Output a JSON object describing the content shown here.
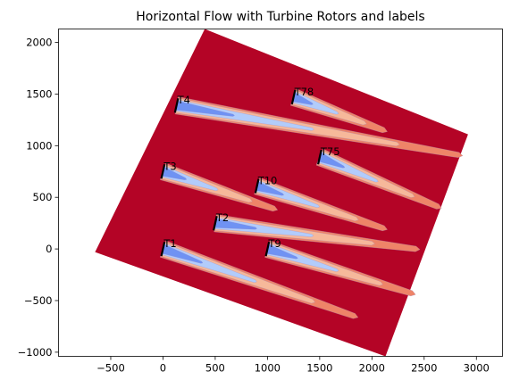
{
  "chart_data": {
    "type": "contour",
    "title": "Horizontal Flow with Turbine Rotors and labels",
    "xlabel": "",
    "ylabel": "",
    "xlim": [
      -1000,
      3250
    ],
    "ylim": [
      -1040,
      2130
    ],
    "x_ticks": [
      -500,
      0,
      500,
      1000,
      1500,
      2000,
      2500,
      3000
    ],
    "y_ticks": [
      -1000,
      -500,
      0,
      500,
      1000,
      1500,
      2000
    ],
    "domain_corners": [
      [
        -650,
        -30
      ],
      [
        400,
        2130
      ],
      [
        2920,
        1110
      ],
      [
        2130,
        -1040
      ]
    ],
    "colors": {
      "background": "#b40426",
      "wake_outer": "#ee8468",
      "wake_mid": "#f6b89a",
      "wake_inner": "#b2ccfb",
      "wake_core": "#6f92f3",
      "rotor": "#000000"
    },
    "turbines": [
      {
        "label": "T1",
        "x": 0,
        "y": 0,
        "wake_end": [
          1830,
          -650
        ]
      },
      {
        "label": "T2",
        "x": 500,
        "y": 250,
        "wake_end": [
          2420,
          0
        ]
      },
      {
        "label": "T3",
        "x": 0,
        "y": 750,
        "wake_end": [
          1060,
          390
        ]
      },
      {
        "label": "T4",
        "x": 130,
        "y": 1390,
        "wake_end": [
          2830,
          910
        ]
      },
      {
        "label": "T9",
        "x": 1000,
        "y": 0,
        "wake_end": [
          2380,
          -430
        ]
      },
      {
        "label": "T10",
        "x": 900,
        "y": 610,
        "wake_end": [
          2110,
          200
        ]
      },
      {
        "label": "T75",
        "x": 1500,
        "y": 890,
        "wake_end": [
          2630,
          410
        ]
      },
      {
        "label": "T78",
        "x": 1250,
        "y": 1470,
        "wake_end": [
          2110,
          1150
        ]
      }
    ]
  }
}
